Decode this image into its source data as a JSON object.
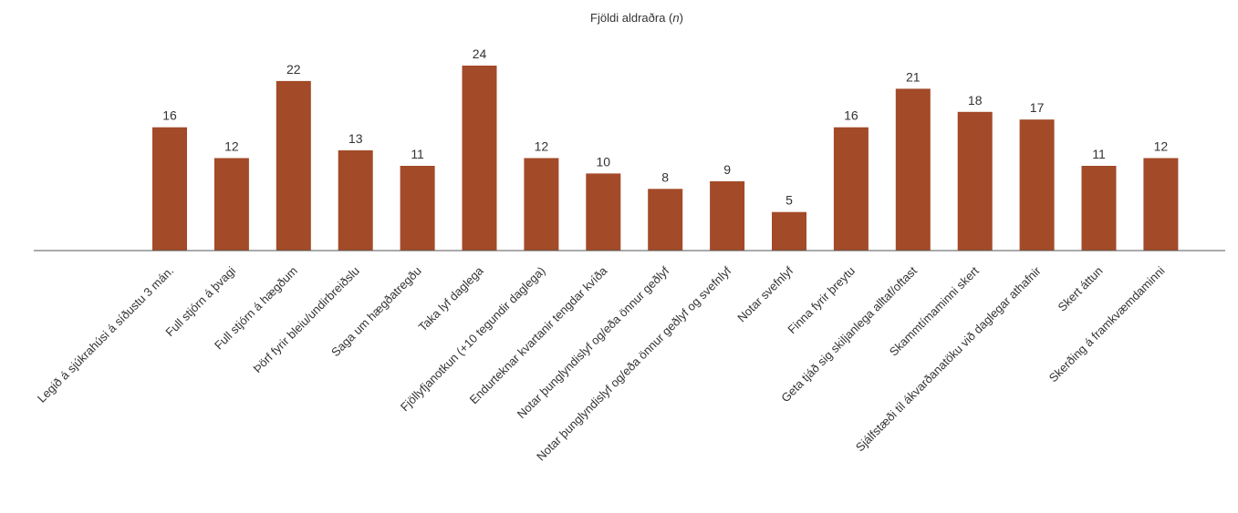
{
  "chart_data": {
    "type": "bar",
    "title": "Fjöldi aldraðra",
    "title_suffix": "n",
    "xlabel": "",
    "ylabel": "",
    "ylim": [
      0,
      24
    ],
    "grid": false,
    "bar_color": "#A34A28",
    "data_labels": true,
    "categories": [
      "Legið á sjúkrahúsi á síðustu 3 mán.",
      "Full stjórn á þvagi",
      "Full stjórn á hægðum",
      "Þörf fyrir bleiu/undirbreiðslu",
      "Saga um hægðatregðu",
      "Taka lyf daglega",
      "Fjöllyfjanotkun (+10 tegundir daglega)",
      "Endurteknar kvartanir tengdar kvíða",
      "Notar þunglyndislyf og/eða önnur geðlyf",
      "Notar þunglyndislyf og/eða önnur geðlyf og svefnlyf",
      "Notar svefnlyf",
      "Finna fyrir þreytu",
      "Geta tjáð sig skiljanlega alltaf/oftast",
      "Skammtímaminni skert",
      "Sjálfstæði til ákvarðanatöku við daglegar athafnir",
      "Skert áttun",
      "Skerðing á framkvæmdaminni"
    ],
    "values": [
      16,
      12,
      22,
      13,
      11,
      24,
      12,
      10,
      8,
      9,
      5,
      16,
      21,
      18,
      17,
      11,
      12
    ]
  }
}
